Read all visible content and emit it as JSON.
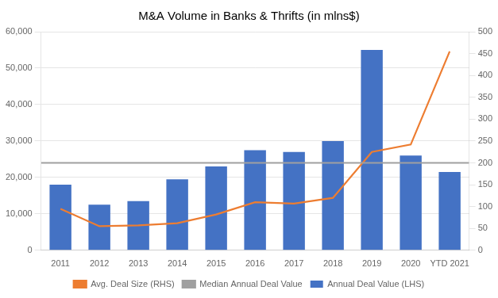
{
  "chart_data": {
    "type": "bar",
    "title": "M&A Volume in Banks & Thrifts (in mlns$)",
    "categories": [
      "2011",
      "2012",
      "2013",
      "2014",
      "2015",
      "2016",
      "2017",
      "2018",
      "2019",
      "2020",
      "YTD 2021"
    ],
    "series": [
      {
        "name": "Annual Deal Value (LHS)",
        "type": "bar",
        "color": "#4472C4",
        "values": [
          18000,
          12500,
          13500,
          19500,
          23000,
          27500,
          27000,
          30000,
          55000,
          26000,
          21500
        ]
      },
      {
        "name": "Median Annual Deal Value",
        "type": "hline",
        "color": "#A0A0A0",
        "value": 24000
      },
      {
        "name": "Avg. Deal Size (RHS)",
        "type": "line",
        "axis": "y2",
        "color": "#ED7D31",
        "values": [
          95,
          55,
          57,
          62,
          82,
          110,
          107,
          120,
          225,
          242,
          455
        ]
      }
    ],
    "ylim": [
      0,
      60000
    ],
    "yticks": [
      0,
      {
        "value": 10000,
        "label": "10,000"
      },
      {
        "value": 20000,
        "label": "20,000"
      },
      {
        "value": 30000,
        "label": "30,000"
      },
      {
        "value": 40000,
        "label": "40,000"
      },
      {
        "value": 50000,
        "label": "50,000"
      },
      {
        "value": 60000,
        "label": "60,000"
      }
    ],
    "y2lim": [
      0,
      500
    ],
    "y2ticks": [
      0,
      50,
      100,
      150,
      200,
      250,
      300,
      350,
      400,
      450,
      500
    ],
    "grid": true,
    "legend": "bottom"
  }
}
